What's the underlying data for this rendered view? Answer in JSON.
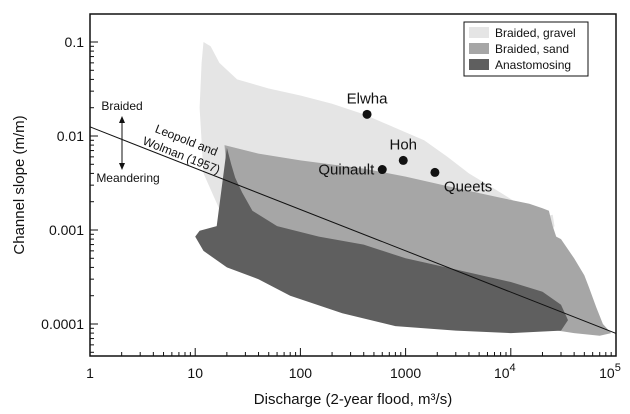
{
  "chart_data": {
    "type": "area",
    "xlabel": "Discharge (2-year flood, m³/s)",
    "ylabel": "Channel slope (m/m)",
    "x_scale": "log",
    "y_scale": "log",
    "xlim": [
      1,
      100000
    ],
    "ylim": [
      4e-05,
      0.2
    ],
    "x_ticks": [
      {
        "value": 1,
        "base": "1"
      },
      {
        "value": 10,
        "base": "10"
      },
      {
        "value": 100,
        "base": "100"
      },
      {
        "value": 1000,
        "base": "1000"
      },
      {
        "value": 10000,
        "base": "10",
        "exp": "4"
      },
      {
        "value": 100000,
        "base": "10",
        "exp": "5"
      }
    ],
    "y_ticks": [
      {
        "value": 0.1,
        "label": "0.1"
      },
      {
        "value": 0.01,
        "label": "0.01"
      },
      {
        "value": 0.001,
        "label": "0.001"
      },
      {
        "value": 0.0001,
        "label": "0.0001"
      }
    ],
    "legend": {
      "position": "top-right",
      "entries": [
        {
          "label": "Braided, gravel",
          "color": "#e5e5e5"
        },
        {
          "label": "Braided, sand",
          "color": "#a6a6a6"
        },
        {
          "label": "Anastomosing",
          "color": "#5f5f5f"
        }
      ]
    },
    "regions": [
      {
        "name": "Braided, gravel",
        "color": "#e5e5e5",
        "polygon": [
          [
            12,
            0.1
          ],
          [
            14,
            0.09
          ],
          [
            17,
            0.06
          ],
          [
            25,
            0.04
          ],
          [
            50,
            0.032
          ],
          [
            100,
            0.027
          ],
          [
            200,
            0.022
          ],
          [
            400,
            0.017
          ],
          [
            700,
            0.013
          ],
          [
            1500,
            0.009
          ],
          [
            2500,
            0.006
          ],
          [
            4000,
            0.004
          ],
          [
            8000,
            0.0025
          ],
          [
            15000,
            0.0016
          ],
          [
            22000,
            0.0014
          ],
          [
            25000,
            0.00145
          ],
          [
            26000,
            0.0011
          ],
          [
            24000,
            0.00095
          ],
          [
            20,
            0.0011
          ],
          [
            12,
            0.004
          ],
          [
            11,
            0.02
          ],
          [
            11.5,
            0.06
          ]
        ]
      },
      {
        "name": "Braided, sand",
        "color": "#a6a6a6",
        "polygon": [
          [
            19,
            0.008
          ],
          [
            40,
            0.0065
          ],
          [
            100,
            0.0055
          ],
          [
            400,
            0.0045
          ],
          [
            1000,
            0.0037
          ],
          [
            3000,
            0.0028
          ],
          [
            8000,
            0.0022
          ],
          [
            15000,
            0.0019
          ],
          [
            20000,
            0.0017
          ],
          [
            23000,
            0.0016
          ],
          [
            25000,
            0.0011
          ],
          [
            27000,
            0.00085
          ],
          [
            30000,
            0.0008
          ],
          [
            40000,
            0.0005
          ],
          [
            50000,
            0.00033
          ],
          [
            55000,
            0.00025
          ],
          [
            65000,
            0.00015
          ],
          [
            75000,
            0.0001
          ],
          [
            90000,
            8e-05
          ],
          [
            70000,
            7.5e-05
          ],
          [
            40000,
            8e-05
          ],
          [
            20000,
            9e-05
          ],
          [
            8000,
            0.00011
          ],
          [
            3000,
            0.00014
          ],
          [
            800,
            0.0002
          ],
          [
            200,
            0.00035
          ],
          [
            60,
            0.0006
          ],
          [
            30,
            0.0011
          ],
          [
            22,
            0.002
          ],
          [
            20,
            0.004
          ]
        ]
      },
      {
        "name": "Anastomosing",
        "color": "#5f5f5f",
        "polygon": [
          [
            20,
            0.0075
          ],
          [
            22,
            0.005
          ],
          [
            24,
            0.0036
          ],
          [
            28,
            0.0025
          ],
          [
            35,
            0.0016
          ],
          [
            60,
            0.0011
          ],
          [
            150,
            0.00085
          ],
          [
            400,
            0.0007
          ],
          [
            1000,
            0.0005
          ],
          [
            3000,
            0.00038
          ],
          [
            10000,
            0.00028
          ],
          [
            20000,
            0.00022
          ],
          [
            30000,
            0.00016
          ],
          [
            35000,
            0.00011
          ],
          [
            30000,
            8.5e-05
          ],
          [
            10000,
            8e-05
          ],
          [
            3000,
            8.5e-05
          ],
          [
            800,
            9.5e-05
          ],
          [
            250,
            0.00013
          ],
          [
            80,
            0.0002
          ],
          [
            40,
            0.0003
          ],
          [
            20,
            0.0004
          ],
          [
            12,
            0.0006
          ],
          [
            10,
            0.00085
          ],
          [
            11,
            0.00098
          ],
          [
            16,
            0.0011
          ]
        ]
      }
    ],
    "points": [
      {
        "label": "Elwha",
        "x": 430,
        "y": 0.017
      },
      {
        "label": "Hoh",
        "x": 950,
        "y": 0.0055
      },
      {
        "label": "Quinault",
        "x": 600,
        "y": 0.0044
      },
      {
        "label": "Queets",
        "x": 1900,
        "y": 0.0041
      }
    ],
    "trend_line": {
      "label_line1": "Leopold and",
      "label_line2": "Wolman (1957)",
      "from": [
        1,
        0.0125
      ],
      "to": [
        100000,
        7.94e-05
      ]
    },
    "annotation": {
      "upper": "Braided",
      "lower": "Meandering"
    }
  }
}
